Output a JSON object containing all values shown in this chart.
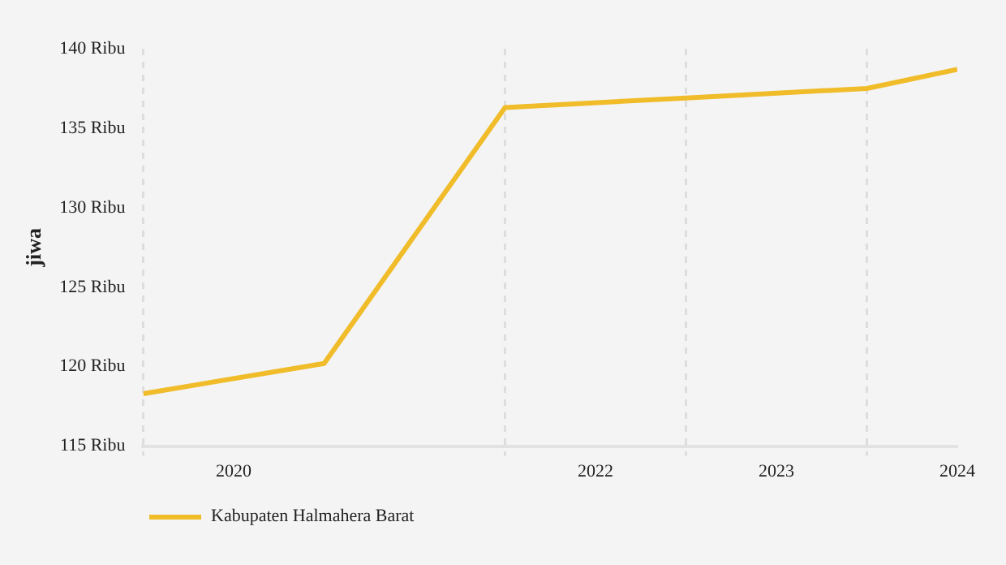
{
  "chart_data": {
    "type": "line",
    "ylabel": "jiwa",
    "x": [
      2019.5,
      2020.5,
      2021.5,
      2022.5,
      2023.5,
      2024
    ],
    "series": [
      {
        "name": "Kabupaten Halmahera Barat",
        "color": "#f0bc2a",
        "values": [
          118.3,
          120.2,
          136.3,
          136.9,
          137.5,
          138.7
        ]
      }
    ],
    "xlim": [
      2019.5,
      2024
    ],
    "xticks": [
      {
        "value": 2019.5,
        "label": null
      },
      {
        "value": 2020,
        "label": "2020"
      },
      {
        "value": 2021.5,
        "label": null
      },
      {
        "value": 2022,
        "label": "2022"
      },
      {
        "value": 2022.5,
        "label": null
      },
      {
        "value": 2023,
        "label": "2023"
      },
      {
        "value": 2023.5,
        "label": null
      },
      {
        "value": 2024,
        "label": "2024"
      }
    ],
    "ylim": [
      115,
      140
    ],
    "yticks": [
      {
        "value": 115,
        "label": "115 Ribu"
      },
      {
        "value": 120,
        "label": "120 Ribu"
      },
      {
        "value": 125,
        "label": "125 Ribu"
      },
      {
        "value": 130,
        "label": "130 Ribu"
      },
      {
        "value": 135,
        "label": "135 Ribu"
      },
      {
        "value": 140,
        "label": "140 Ribu"
      }
    ],
    "grid": "x",
    "legend": "bottom left",
    "marker": "none",
    "line_style": "solid"
  }
}
